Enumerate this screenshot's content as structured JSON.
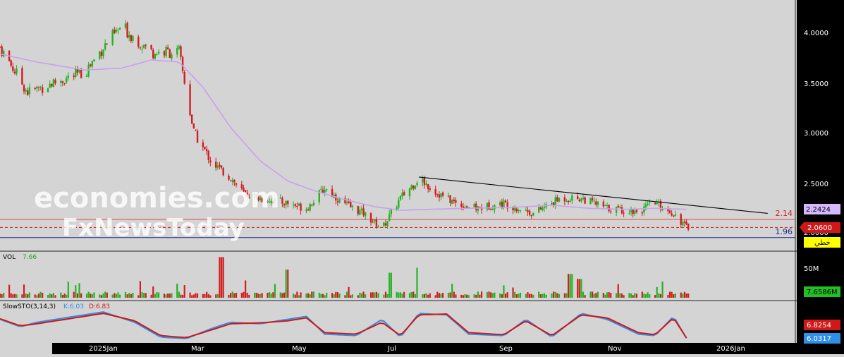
{
  "colors": {
    "background": "#d4d4d4",
    "axis_panel": "#000000",
    "up_candle": "#22b422",
    "down_candle": "#d21e1e",
    "ma_line": "#c9a0ef",
    "trendline": "#000000",
    "resistance_line": "#e04a4a",
    "support_line": "#1a2a8c",
    "current_price_line": "#d01818",
    "sto_k": "#2f8fe6",
    "sto_d": "#d01818",
    "watermark": "#ffffff"
  },
  "watermark": {
    "line1": "economies.com",
    "line2": "FxNewsToday"
  },
  "levels": {
    "resistance_label": "2.14",
    "support_label": "1.96"
  },
  "price_axis": {
    "ticks": [
      "4.0000",
      "3.5000",
      "3.0000",
      "2.5000",
      "2.0000"
    ],
    "badges": {
      "ma_value": "2.2424",
      "last_price": "2.0600",
      "trendline_tag": "خطي"
    }
  },
  "volume": {
    "label": "VOL",
    "value_label": "7.66",
    "axis_tick": "50M",
    "badge": "7.6586M"
  },
  "stochastic": {
    "label": "SlowSTO(3,14,3)",
    "k_label": "K:6.03",
    "d_label": "D:6.83",
    "badge_d": "6.8254",
    "badge_k": "6.0317"
  },
  "time_axis": {
    "labels": [
      "2025Jan",
      "Mar",
      "May",
      "Jul",
      "Sep",
      "Nov",
      "2026Jan"
    ]
  },
  "chart_data": {
    "type": "candlestick",
    "ylim": [
      1.9,
      4.3
    ],
    "close_path": {
      "dates": [
        "2024-11-20",
        "2024-12-05",
        "2024-12-20",
        "2025-01-05",
        "2025-01-15",
        "2025-01-25",
        "2025-02-10",
        "2025-02-25",
        "2025-03-05",
        "2025-03-15",
        "2025-03-25",
        "2025-04-01",
        "2025-04-10",
        "2025-04-25",
        "2025-05-05",
        "2025-05-15",
        "2025-05-25",
        "2025-06-05",
        "2025-06-15",
        "2025-06-25",
        "2025-07-05",
        "2025-07-15",
        "2025-07-25",
        "2025-08-05",
        "2025-08-20",
        "2025-09-05",
        "2025-09-20",
        "2025-10-01",
        "2025-10-15",
        "2025-11-01",
        "2025-11-10",
        "2025-11-20",
        "2025-11-27"
      ],
      "values": [
        3.85,
        3.4,
        3.5,
        3.6,
        3.85,
        4.05,
        3.8,
        3.8,
        3.0,
        2.7,
        2.55,
        2.4,
        2.35,
        2.3,
        2.25,
        2.45,
        2.3,
        2.2,
        2.05,
        2.35,
        2.55,
        2.4,
        2.3,
        2.25,
        2.3,
        2.2,
        2.35,
        2.35,
        2.25,
        2.22,
        2.3,
        2.2,
        2.06
      ]
    },
    "moving_average": {
      "dates": [
        "2024-11-20",
        "2024-12-10",
        "2025-01-05",
        "2025-01-25",
        "2025-02-10",
        "2025-02-25",
        "2025-03-10",
        "2025-03-25",
        "2025-04-10",
        "2025-04-25",
        "2025-05-10",
        "2025-05-25",
        "2025-06-10",
        "2025-06-25",
        "2025-07-10",
        "2025-08-01",
        "2025-08-25",
        "2025-09-15",
        "2025-10-05",
        "2025-10-25",
        "2025-11-10",
        "2025-11-27"
      ],
      "values": [
        3.78,
        3.7,
        3.62,
        3.64,
        3.72,
        3.7,
        3.45,
        3.05,
        2.72,
        2.52,
        2.42,
        2.34,
        2.27,
        2.23,
        2.24,
        2.25,
        2.26,
        2.28,
        2.25,
        2.24,
        2.25,
        2.24
      ]
    },
    "trendline": {
      "start": [
        "2025-07-05",
        2.56
      ],
      "end": [
        "2026-01-10",
        2.2
      ]
    },
    "horizontal_levels": [
      2.14,
      1.96
    ],
    "last_price": 2.06,
    "volume_series": {
      "dates": [
        "2025-03-20",
        "2025-04-25",
        "2025-06-20",
        "2025-07-05",
        "2025-09-25",
        "2025-09-30"
      ],
      "values": [
        65,
        45,
        40,
        32,
        38,
        30
      ],
      "unit": "M"
    },
    "stochastic": {
      "dates": [
        "2024-11-20",
        "2024-12-01",
        "2024-12-10",
        "2025-01-15",
        "2025-02-01",
        "2025-02-15",
        "2025-03-01",
        "2025-03-15",
        "2025-03-25",
        "2025-04-10",
        "2025-04-25",
        "2025-05-05",
        "2025-05-15",
        "2025-06-01",
        "2025-06-15",
        "2025-06-25",
        "2025-07-05",
        "2025-07-20",
        "2025-08-01",
        "2025-08-20",
        "2025-09-01",
        "2025-09-15",
        "2025-10-01",
        "2025-10-15",
        "2025-11-01",
        "2025-11-10",
        "2025-11-20",
        "2025-11-27"
      ],
      "k": [
        70,
        45,
        60,
        95,
        60,
        10,
        5,
        40,
        60,
        55,
        70,
        80,
        20,
        15,
        70,
        10,
        90,
        85,
        20,
        15,
        70,
        10,
        90,
        70,
        20,
        15,
        80,
        6.03
      ],
      "d": [
        72,
        48,
        55,
        90,
        65,
        15,
        8,
        35,
        55,
        58,
        65,
        75,
        25,
        20,
        60,
        15,
        85,
        88,
        25,
        18,
        65,
        15,
        85,
        75,
        25,
        18,
        75,
        6.83
      ]
    }
  }
}
